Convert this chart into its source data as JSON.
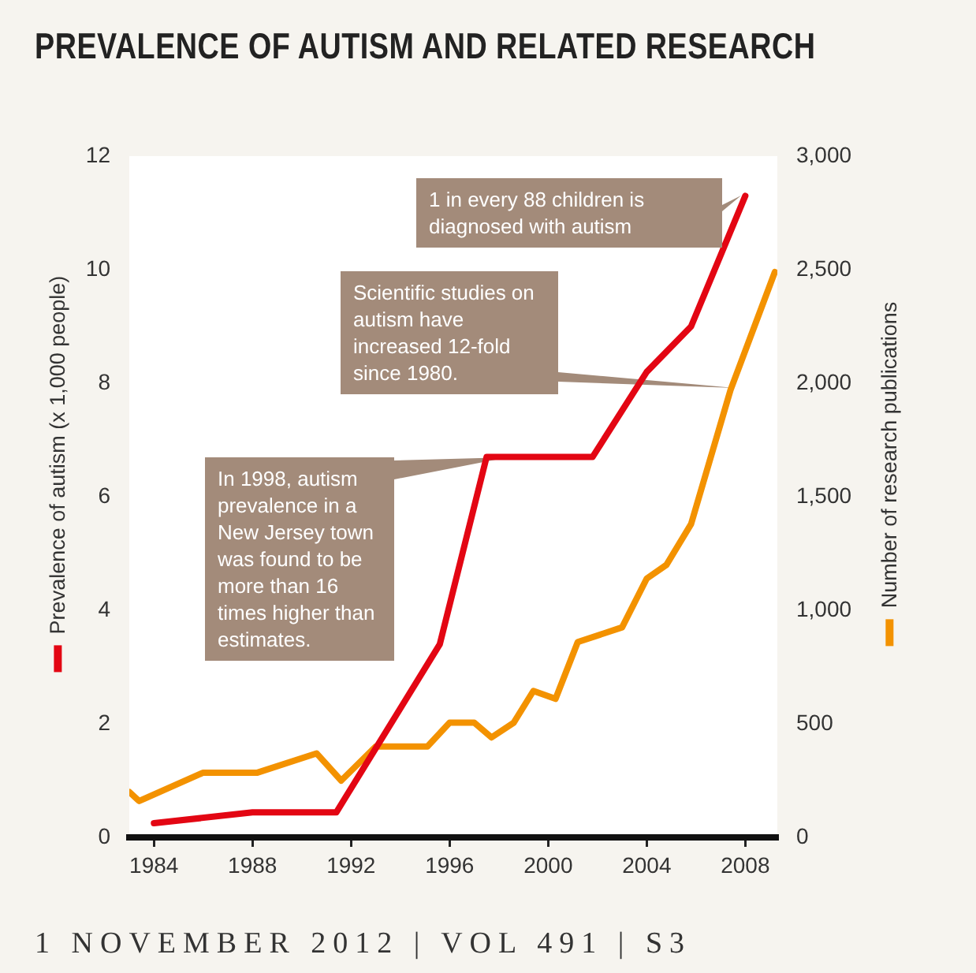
{
  "chart_data": {
    "type": "line",
    "title": "PREVALENCE OF AUTISM AND RELATED RESEARCH",
    "ylabel": "Prevalence of autism (x 1,000 people)",
    "y2label": "Number of research publications",
    "xlim": [
      1983,
      2009.3
    ],
    "xticks": [
      1984,
      1988,
      1992,
      1996,
      2000,
      2004,
      2008
    ],
    "ylim": [
      0,
      12
    ],
    "yticks": [
      0,
      2,
      4,
      6,
      8,
      10,
      12
    ],
    "y2lim": [
      0,
      3000
    ],
    "y2ticks": [
      0,
      {
        "value": 500,
        "label": "500"
      },
      {
        "value": 1000,
        "label": "1,000"
      },
      {
        "value": 1500,
        "label": "1,500"
      },
      {
        "value": 2000,
        "label": "2,000"
      },
      {
        "value": 2500,
        "label": "2,500"
      },
      {
        "value": 3000,
        "label": "3,000"
      }
    ],
    "grid": false,
    "legend": false,
    "marker": "none",
    "line_style": "solid",
    "series": [
      {
        "color": "#e30613",
        "x": [
          1984,
          1988,
          1991.4,
          1995.6,
          1997.5,
          2001.8,
          2004,
          2005.8,
          2008
        ],
        "values": [
          0.25,
          0.44,
          0.44,
          3.4,
          6.7,
          6.7,
          8.2,
          9.0,
          11.3
        ]
      },
      {
        "color": "#f39200",
        "axis": "y2",
        "x": [
          1983,
          1983.4,
          1986,
          1988.2,
          1990.6,
          1991.6,
          1993,
          1995.1,
          1996,
          1997,
          1997.7,
          1998.6,
          1999.4,
          2000.3,
          2001.2,
          2003,
          2004,
          2004.8,
          2005.8,
          2007.4,
          2009.2
        ],
        "values": [
          200,
          160,
          285,
          285,
          370,
          250,
          400,
          400,
          505,
          505,
          440,
          505,
          645,
          610,
          860,
          925,
          1140,
          1200,
          1380,
          1970,
          2490
        ]
      }
    ],
    "annotations": [
      "1 in every 88 children is diagnosed with autism",
      "Scientific studies on autism have increased 12-fold since 1980.",
      "In 1998, autism prevalence in a New Jersey town was found to be more than 16 times higher than estimates.",
      "1 NOVEMBER 2012 | VOL 491 | S3"
    ]
  }
}
